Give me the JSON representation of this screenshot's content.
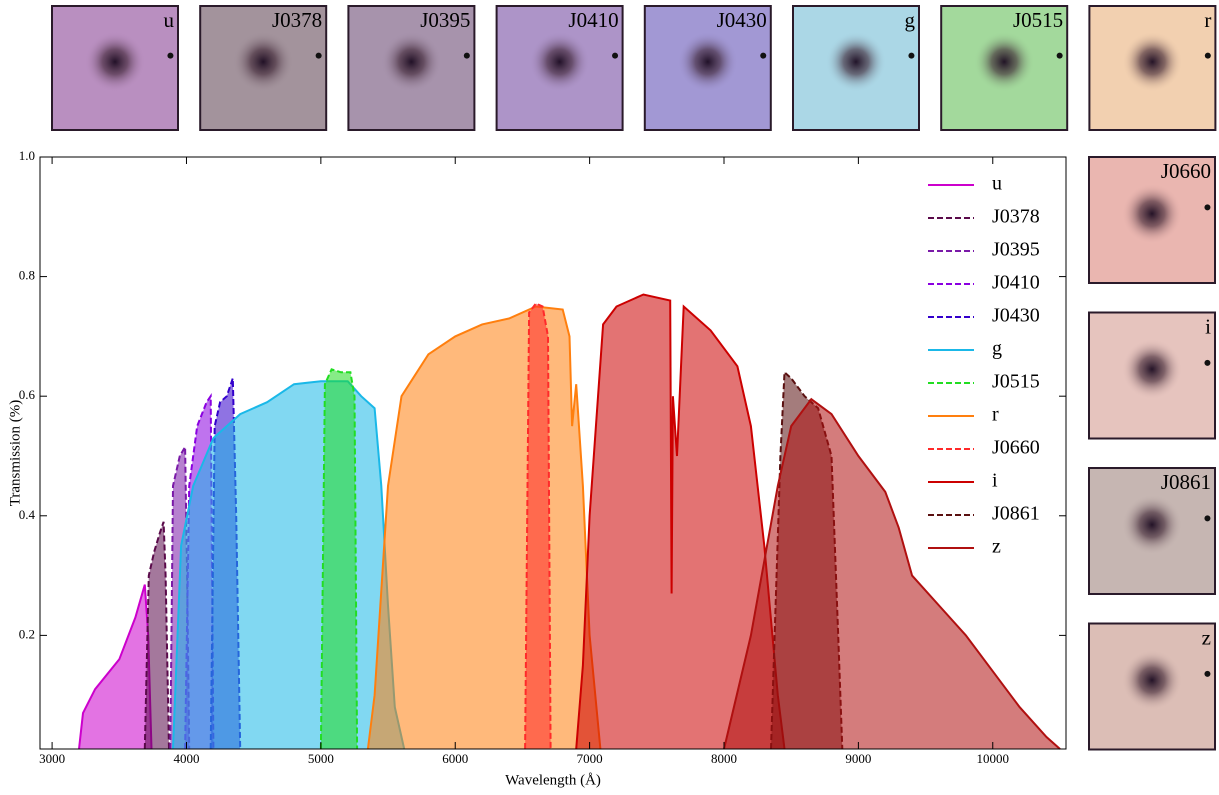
{
  "chart_data": {
    "type": "area",
    "xlabel": "Wavelength (Å)",
    "ylabel": "Transmission (%)",
    "xlim": [
      2910,
      10545
    ],
    "ylim": [
      0.01,
      1.0
    ],
    "xticks": [
      3000,
      4000,
      5000,
      6000,
      7000,
      8000,
      9000,
      10000
    ],
    "yticks": [
      0.2,
      0.4,
      0.6,
      {
        "value": 0.8,
        "label": "0.8"
      },
      {
        "value": 1,
        "label": "1.0"
      }
    ],
    "legend": "upper right",
    "series": [
      {
        "name": "u",
        "color": "#cc00cc",
        "dashed": false,
        "x": [
          3200,
          3230,
          3320,
          3500,
          3620,
          3690,
          3715,
          3740
        ],
        "values": [
          0.01,
          0.07,
          0.11,
          0.16,
          0.23,
          0.285,
          0.2,
          0.01
        ]
      },
      {
        "name": "J0378",
        "color": "#5a0a4a",
        "dashed": true,
        "x": [
          3690,
          3720,
          3760,
          3800,
          3830,
          3845,
          3870
        ],
        "values": [
          0.01,
          0.3,
          0.34,
          0.37,
          0.39,
          0.3,
          0.01
        ]
      },
      {
        "name": "J0395",
        "color": "#7a1aa8",
        "dashed": true,
        "x": [
          3880,
          3900,
          3950,
          3990,
          4005,
          4020
        ],
        "values": [
          0.01,
          0.45,
          0.5,
          0.515,
          0.3,
          0.01
        ]
      },
      {
        "name": "J0410",
        "color": "#8a00e0",
        "dashed": true,
        "x": [
          3990,
          4020,
          4080,
          4150,
          4180,
          4200
        ],
        "values": [
          0.01,
          0.45,
          0.55,
          0.59,
          0.6,
          0.01
        ]
      },
      {
        "name": "J0430",
        "color": "#3300cc",
        "dashed": true,
        "x": [
          4180,
          4210,
          4250,
          4300,
          4345,
          4370,
          4400
        ],
        "values": [
          0.01,
          0.55,
          0.59,
          0.6,
          0.63,
          0.4,
          0.01
        ]
      },
      {
        "name": "g",
        "color": "#1ab8e8",
        "dashed": false,
        "x": [
          3900,
          3960,
          4050,
          4200,
          4400,
          4600,
          4800,
          5000,
          5200,
          5300,
          5400,
          5450,
          5500,
          5550,
          5620
        ],
        "values": [
          0.01,
          0.35,
          0.45,
          0.53,
          0.57,
          0.59,
          0.62,
          0.625,
          0.625,
          0.6,
          0.58,
          0.45,
          0.25,
          0.08,
          0.01
        ]
      },
      {
        "name": "J0515",
        "color": "#22dd22",
        "dashed": true,
        "x": [
          5000,
          5030,
          5080,
          5150,
          5220,
          5250,
          5270
        ],
        "values": [
          0.01,
          0.62,
          0.645,
          0.64,
          0.64,
          0.6,
          0.01
        ]
      },
      {
        "name": "r",
        "color": "#ff7f0e",
        "dashed": false,
        "x": [
          5350,
          5400,
          5500,
          5600,
          5800,
          6000,
          6200,
          6400,
          6600,
          6800,
          6850,
          6870,
          6900,
          6950,
          7000,
          7080
        ],
        "values": [
          0.01,
          0.1,
          0.45,
          0.6,
          0.67,
          0.7,
          0.72,
          0.73,
          0.75,
          0.745,
          0.7,
          0.55,
          0.62,
          0.45,
          0.2,
          0.01
        ]
      },
      {
        "name": "J0660",
        "color": "#ff2a2a",
        "dashed": true,
        "x": [
          6520,
          6550,
          6600,
          6650,
          6690,
          6710
        ],
        "values": [
          0.01,
          0.74,
          0.755,
          0.75,
          0.7,
          0.01
        ]
      },
      {
        "name": "i",
        "color": "#cc0000",
        "dashed": false,
        "x": [
          6900,
          6950,
          7000,
          7100,
          7200,
          7400,
          7600,
          7610,
          7620,
          7650,
          7700,
          7900,
          8100,
          8200,
          8300,
          8400,
          8450
        ],
        "values": [
          0.01,
          0.15,
          0.4,
          0.72,
          0.75,
          0.77,
          0.76,
          0.27,
          0.6,
          0.5,
          0.75,
          0.71,
          0.65,
          0.55,
          0.35,
          0.1,
          0.01
        ]
      },
      {
        "name": "J0861",
        "color": "#5a1010",
        "dashed": true,
        "x": [
          8350,
          8420,
          8450,
          8500,
          8600,
          8700,
          8800,
          8850,
          8880
        ],
        "values": [
          0.01,
          0.5,
          0.64,
          0.63,
          0.6,
          0.58,
          0.5,
          0.2,
          0.01
        ]
      },
      {
        "name": "z",
        "color": "#b01010",
        "dashed": false,
        "x": [
          8000,
          8200,
          8400,
          8500,
          8650,
          8800,
          9000,
          9200,
          9300,
          9400,
          9600,
          9800,
          10000,
          10200,
          10400,
          10500
        ],
        "values": [
          0.01,
          0.2,
          0.45,
          0.55,
          0.595,
          0.57,
          0.5,
          0.44,
          0.38,
          0.3,
          0.25,
          0.2,
          0.14,
          0.08,
          0.03,
          0.01
        ]
      }
    ]
  },
  "stamps": [
    {
      "label": "u",
      "color": "#b98fc0"
    },
    {
      "label": "J0378",
      "color": "#a3939c"
    },
    {
      "label": "J0395",
      "color": "#a793ac"
    },
    {
      "label": "J0410",
      "color": "#ad94c8"
    },
    {
      "label": "J0430",
      "color": "#a298d4"
    },
    {
      "label": "g",
      "color": "#abd7e6"
    },
    {
      "label": "J0515",
      "color": "#a3d99c"
    },
    {
      "label": "r",
      "color": "#f2d0b0"
    },
    {
      "label": "J0660",
      "color": "#eab6b0"
    },
    {
      "label": "i",
      "color": "#e6c4be"
    },
    {
      "label": "J0861",
      "color": "#c6b6b2"
    },
    {
      "label": "z",
      "color": "#dcbeb6"
    }
  ]
}
